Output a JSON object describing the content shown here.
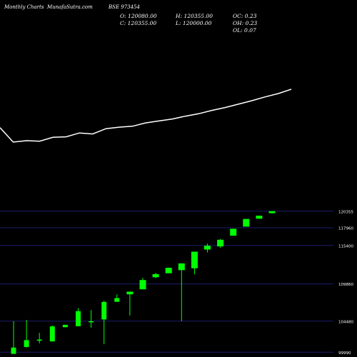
{
  "header": {
    "left": "Monthly Charts",
    "site": "MunafaSutra.com",
    "symbol": "BSE 973454"
  },
  "ohlc": {
    "open": "O: 120080.00",
    "high": "H: 120355.00",
    "oc": "OC: 0.23",
    "close": "C: 120355.00",
    "low": "L: 120000.00",
    "oh": "OH: 0.23",
    "ol": "OL: 0.07"
  },
  "colors": {
    "background": "#000000",
    "candle": "#00ff00",
    "line": "#ffffff",
    "grid": "#1c1c6e",
    "text": "#ffffff"
  },
  "chart_data": [
    {
      "type": "line",
      "x": [
        1,
        2,
        3,
        4,
        5,
        6,
        7,
        8,
        9,
        10,
        11,
        12,
        13,
        14,
        15,
        16,
        17,
        18,
        19,
        20,
        21,
        22,
        23
      ],
      "y": [
        101200,
        98200,
        98500,
        98400,
        99200,
        99300,
        100100,
        99900,
        101000,
        101300,
        101500,
        102200,
        102600,
        103000,
        103600,
        104100,
        104800,
        105400,
        106100,
        106800,
        107600,
        108300,
        109200
      ]
    },
    {
      "type": "candlestick",
      "ylim": [
        99300,
        120950
      ],
      "y_ticks": [
        "120355",
        "117960",
        "115400",
        "109860",
        "104480",
        "99990"
      ],
      "y_tick_values": [
        120355,
        117960,
        115400,
        109860,
        104480,
        99990
      ],
      "candles": [
        {
          "o": 99750,
          "h": 104480,
          "l": 99750,
          "c": 100660
        },
        {
          "o": 100750,
          "h": 104650,
          "l": 100650,
          "c": 101730
        },
        {
          "o": 101660,
          "h": 102780,
          "l": 101270,
          "c": 101820
        },
        {
          "o": 101540,
          "h": 103830,
          "l": 101540,
          "c": 103720
        },
        {
          "o": 103600,
          "h": 103830,
          "l": 103600,
          "c": 103950
        },
        {
          "o": 103740,
          "h": 106370,
          "l": 103740,
          "c": 105920
        },
        {
          "o": 104470,
          "h": 106080,
          "l": 103530,
          "c": 104470
        },
        {
          "o": 104720,
          "h": 107440,
          "l": 101150,
          "c": 107250
        },
        {
          "o": 107270,
          "h": 108330,
          "l": 107270,
          "c": 107810
        },
        {
          "o": 108350,
          "h": 108770,
          "l": 105290,
          "c": 108730
        },
        {
          "o": 109070,
          "h": 110730,
          "l": 109070,
          "c": 110410
        },
        {
          "o": 110820,
          "h": 111460,
          "l": 110700,
          "c": 111270
        },
        {
          "o": 111400,
          "h": 112220,
          "l": 111400,
          "c": 112180
        },
        {
          "o": 111850,
          "h": 112820,
          "l": 104480,
          "c": 112820
        },
        {
          "o": 112120,
          "h": 114510,
          "l": 111250,
          "c": 114510
        },
        {
          "o": 114810,
          "h": 115660,
          "l": 114400,
          "c": 115360
        },
        {
          "o": 115270,
          "h": 116340,
          "l": 115050,
          "c": 116230
        },
        {
          "o": 116820,
          "h": 117820,
          "l": 116820,
          "c": 117820
        },
        {
          "o": 118130,
          "h": 119230,
          "l": 118130,
          "c": 119230
        },
        {
          "o": 119270,
          "h": 119700,
          "l": 119270,
          "c": 119700
        },
        {
          "o": 120080,
          "h": 120355,
          "l": 120000,
          "c": 120355
        }
      ]
    }
  ]
}
